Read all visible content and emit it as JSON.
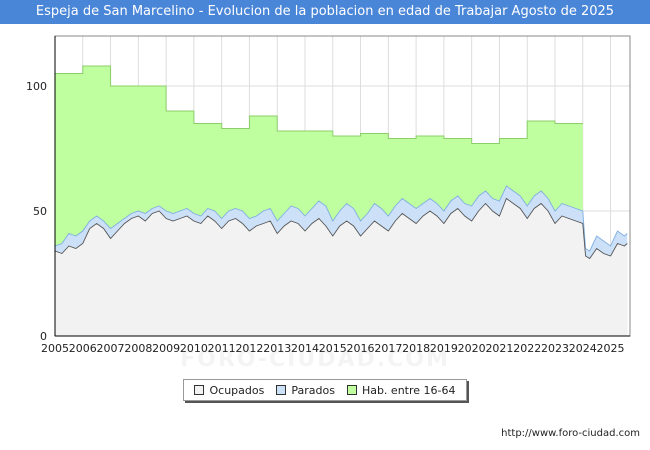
{
  "title": "Espeja de San Marcelino - Evolucion de la poblacion en edad de Trabajar Agosto de 2025",
  "footer_url": "http://www.foro-ciudad.com",
  "watermark": "FORO-CIUDAD.COM",
  "legend": [
    {
      "label": "Ocupados",
      "color": "#f2f2f2"
    },
    {
      "label": "Parados",
      "color": "#cce0f8"
    },
    {
      "label": "Hab. entre 16-64",
      "color": "#bfffa0"
    }
  ],
  "chart_data": {
    "type": "area",
    "title": "Espeja de San Marcelino - Evolucion de la poblacion en edad de Trabajar Agosto de 2025",
    "xlabel": "",
    "ylabel": "",
    "xlim": [
      2005,
      2025.7
    ],
    "ylim": [
      0,
      120
    ],
    "yticks": [
      0,
      50,
      100
    ],
    "xticks": [
      "2005",
      "2006",
      "2007",
      "2008",
      "2009",
      "2010",
      "2011",
      "2012",
      "2013",
      "2014",
      "2015",
      "2016",
      "2017",
      "2018",
      "2019",
      "2020",
      "2021",
      "2022",
      "2023",
      "2024",
      "2025"
    ],
    "grid": true,
    "legend_position": "bottom",
    "series": [
      {
        "name": "Hab. entre 16-64",
        "color": "#bfffa0",
        "line_color": "#8ccf6a",
        "points": [
          [
            2005,
            105
          ],
          [
            2006,
            105
          ],
          [
            2006,
            108
          ],
          [
            2007,
            108
          ],
          [
            2007,
            100
          ],
          [
            2009,
            100
          ],
          [
            2009,
            90
          ],
          [
            2010,
            90
          ],
          [
            2010,
            85
          ],
          [
            2011,
            85
          ],
          [
            2011,
            83
          ],
          [
            2012,
            83
          ],
          [
            2012,
            88
          ],
          [
            2013,
            88
          ],
          [
            2013,
            82
          ],
          [
            2015,
            82
          ],
          [
            2015,
            80
          ],
          [
            2016,
            80
          ],
          [
            2016,
            81
          ],
          [
            2017,
            81
          ],
          [
            2017,
            79
          ],
          [
            2018,
            79
          ],
          [
            2018,
            80
          ],
          [
            2019,
            80
          ],
          [
            2019,
            79
          ],
          [
            2020,
            79
          ],
          [
            2020,
            77
          ],
          [
            2021,
            77
          ],
          [
            2021,
            79
          ],
          [
            2022,
            79
          ],
          [
            2022,
            86
          ],
          [
            2023,
            86
          ],
          [
            2023,
            85
          ],
          [
            2024,
            85
          ]
        ]
      },
      {
        "name": "Parados",
        "color": "#cce0f8",
        "line_color": "#7eaee0",
        "points": [
          [
            2005,
            36
          ],
          [
            2005.25,
            37
          ],
          [
            2005.5,
            41
          ],
          [
            2005.75,
            40
          ],
          [
            2006,
            42
          ],
          [
            2006.25,
            46
          ],
          [
            2006.5,
            48
          ],
          [
            2006.75,
            46
          ],
          [
            2007,
            43
          ],
          [
            2007.25,
            45
          ],
          [
            2007.5,
            47
          ],
          [
            2007.75,
            49
          ],
          [
            2008,
            50
          ],
          [
            2008.25,
            49
          ],
          [
            2008.5,
            51
          ],
          [
            2008.75,
            52
          ],
          [
            2009,
            50
          ],
          [
            2009.25,
            49
          ],
          [
            2009.5,
            50
          ],
          [
            2009.75,
            51
          ],
          [
            2010,
            49
          ],
          [
            2010.25,
            48
          ],
          [
            2010.5,
            51
          ],
          [
            2010.75,
            50
          ],
          [
            2011,
            47
          ],
          [
            2011.25,
            50
          ],
          [
            2011.5,
            51
          ],
          [
            2011.75,
            50
          ],
          [
            2012,
            47
          ],
          [
            2012.25,
            48
          ],
          [
            2012.5,
            50
          ],
          [
            2012.75,
            51
          ],
          [
            2013,
            46
          ],
          [
            2013.25,
            49
          ],
          [
            2013.5,
            52
          ],
          [
            2013.75,
            51
          ],
          [
            2014,
            48
          ],
          [
            2014.25,
            51
          ],
          [
            2014.5,
            54
          ],
          [
            2014.75,
            52
          ],
          [
            2015,
            46
          ],
          [
            2015.25,
            50
          ],
          [
            2015.5,
            53
          ],
          [
            2015.75,
            51
          ],
          [
            2016,
            46
          ],
          [
            2016.25,
            49
          ],
          [
            2016.5,
            53
          ],
          [
            2016.75,
            51
          ],
          [
            2017,
            48
          ],
          [
            2017.25,
            52
          ],
          [
            2017.5,
            55
          ],
          [
            2017.75,
            53
          ],
          [
            2018,
            51
          ],
          [
            2018.25,
            53
          ],
          [
            2018.5,
            55
          ],
          [
            2018.75,
            53
          ],
          [
            2019,
            50
          ],
          [
            2019.25,
            54
          ],
          [
            2019.5,
            56
          ],
          [
            2019.75,
            53
          ],
          [
            2020,
            52
          ],
          [
            2020.25,
            56
          ],
          [
            2020.5,
            58
          ],
          [
            2020.75,
            55
          ],
          [
            2021,
            54
          ],
          [
            2021.25,
            60
          ],
          [
            2021.5,
            58
          ],
          [
            2021.75,
            56
          ],
          [
            2022,
            52
          ],
          [
            2022.25,
            56
          ],
          [
            2022.5,
            58
          ],
          [
            2022.75,
            55
          ],
          [
            2023,
            50
          ],
          [
            2023.25,
            53
          ],
          [
            2023.5,
            52
          ],
          [
            2023.75,
            51
          ],
          [
            2024,
            50
          ],
          [
            2024.1,
            35
          ],
          [
            2024.25,
            34
          ],
          [
            2024.5,
            40
          ],
          [
            2024.75,
            38
          ],
          [
            2025,
            36
          ],
          [
            2025.25,
            42
          ],
          [
            2025.5,
            40
          ],
          [
            2025.6,
            41
          ]
        ]
      },
      {
        "name": "Ocupados",
        "color": "#f2f2f2",
        "line_color": "#555555",
        "points": [
          [
            2005,
            34
          ],
          [
            2005.25,
            33
          ],
          [
            2005.5,
            36
          ],
          [
            2005.75,
            35
          ],
          [
            2006,
            37
          ],
          [
            2006.25,
            43
          ],
          [
            2006.5,
            45
          ],
          [
            2006.75,
            43
          ],
          [
            2007,
            39
          ],
          [
            2007.25,
            42
          ],
          [
            2007.5,
            45
          ],
          [
            2007.75,
            47
          ],
          [
            2008,
            48
          ],
          [
            2008.25,
            46
          ],
          [
            2008.5,
            49
          ],
          [
            2008.75,
            50
          ],
          [
            2009,
            47
          ],
          [
            2009.25,
            46
          ],
          [
            2009.5,
            47
          ],
          [
            2009.75,
            48
          ],
          [
            2010,
            46
          ],
          [
            2010.25,
            45
          ],
          [
            2010.5,
            48
          ],
          [
            2010.75,
            46
          ],
          [
            2011,
            43
          ],
          [
            2011.25,
            46
          ],
          [
            2011.5,
            47
          ],
          [
            2011.75,
            45
          ],
          [
            2012,
            42
          ],
          [
            2012.25,
            44
          ],
          [
            2012.5,
            45
          ],
          [
            2012.75,
            46
          ],
          [
            2013,
            41
          ],
          [
            2013.25,
            44
          ],
          [
            2013.5,
            46
          ],
          [
            2013.75,
            45
          ],
          [
            2014,
            42
          ],
          [
            2014.25,
            45
          ],
          [
            2014.5,
            47
          ],
          [
            2014.75,
            44
          ],
          [
            2015,
            40
          ],
          [
            2015.25,
            44
          ],
          [
            2015.5,
            46
          ],
          [
            2015.75,
            44
          ],
          [
            2016,
            40
          ],
          [
            2016.25,
            43
          ],
          [
            2016.5,
            46
          ],
          [
            2016.75,
            44
          ],
          [
            2017,
            42
          ],
          [
            2017.25,
            46
          ],
          [
            2017.5,
            49
          ],
          [
            2017.75,
            47
          ],
          [
            2018,
            45
          ],
          [
            2018.25,
            48
          ],
          [
            2018.5,
            50
          ],
          [
            2018.75,
            48
          ],
          [
            2019,
            45
          ],
          [
            2019.25,
            49
          ],
          [
            2019.5,
            51
          ],
          [
            2019.75,
            48
          ],
          [
            2020,
            46
          ],
          [
            2020.25,
            50
          ],
          [
            2020.5,
            53
          ],
          [
            2020.75,
            50
          ],
          [
            2021,
            48
          ],
          [
            2021.25,
            55
          ],
          [
            2021.5,
            53
          ],
          [
            2021.75,
            51
          ],
          [
            2022,
            47
          ],
          [
            2022.25,
            51
          ],
          [
            2022.5,
            53
          ],
          [
            2022.75,
            50
          ],
          [
            2023,
            45
          ],
          [
            2023.25,
            48
          ],
          [
            2023.5,
            47
          ],
          [
            2023.75,
            46
          ],
          [
            2024,
            45
          ],
          [
            2024.1,
            32
          ],
          [
            2024.25,
            31
          ],
          [
            2024.5,
            35
          ],
          [
            2024.75,
            33
          ],
          [
            2025,
            32
          ],
          [
            2025.25,
            37
          ],
          [
            2025.5,
            36
          ],
          [
            2025.6,
            37
          ]
        ]
      }
    ]
  }
}
